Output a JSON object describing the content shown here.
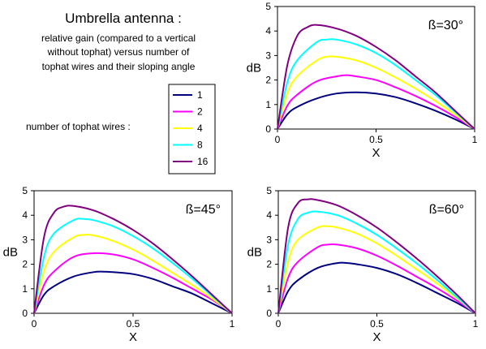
{
  "header": {
    "title": "Umbrella antenna :",
    "subtitle_lines": [
      "relative gain (compared to a vertical",
      "without tophat) versus number of",
      "tophat wires and their sloping angle"
    ],
    "legend_caption": "number of tophat wires :"
  },
  "legend": {
    "entries": [
      {
        "label": "1",
        "color": "#000080"
      },
      {
        "label": "2",
        "color": "#ff00ff"
      },
      {
        "label": "4",
        "color": "#ffff00"
      },
      {
        "label": "8",
        "color": "#00ffff"
      },
      {
        "label": "16",
        "color": "#800080"
      }
    ]
  },
  "chart_data": [
    {
      "type": "line",
      "annotation": "ß=30°",
      "xlabel": "X",
      "ylabel": "dB",
      "xlim": [
        0,
        1
      ],
      "ylim": [
        0,
        5
      ],
      "xticks": [
        "0",
        "0.5",
        "1"
      ],
      "yticks": [
        "0",
        "1",
        "2",
        "3",
        "4",
        "5"
      ],
      "grid": false,
      "series": [
        {
          "name": "1",
          "color": "#000080",
          "x": [
            0,
            0.05,
            0.1,
            0.2,
            0.3,
            0.4,
            0.5,
            0.6,
            0.7,
            0.8,
            0.9,
            1.0
          ],
          "values": [
            0,
            0.6,
            0.9,
            1.25,
            1.45,
            1.5,
            1.45,
            1.3,
            1.05,
            0.75,
            0.4,
            0
          ]
        },
        {
          "name": "2",
          "color": "#ff00ff",
          "x": [
            0,
            0.05,
            0.1,
            0.2,
            0.3,
            0.35,
            0.4,
            0.5,
            0.6,
            0.7,
            0.8,
            0.9,
            1.0
          ],
          "values": [
            0,
            0.95,
            1.4,
            1.95,
            2.15,
            2.2,
            2.15,
            2.0,
            1.7,
            1.35,
            0.95,
            0.5,
            0
          ]
        },
        {
          "name": "4",
          "color": "#ffff00",
          "x": [
            0,
            0.05,
            0.1,
            0.2,
            0.25,
            0.3,
            0.4,
            0.5,
            0.6,
            0.7,
            0.8,
            0.9,
            1.0
          ],
          "values": [
            0,
            1.45,
            2.15,
            2.8,
            2.95,
            2.95,
            2.8,
            2.5,
            2.1,
            1.65,
            1.15,
            0.6,
            0
          ]
        },
        {
          "name": "8",
          "color": "#00ffff",
          "x": [
            0,
            0.05,
            0.1,
            0.2,
            0.25,
            0.3,
            0.4,
            0.5,
            0.6,
            0.7,
            0.8,
            0.9,
            1.0
          ],
          "values": [
            0,
            1.9,
            2.8,
            3.55,
            3.65,
            3.65,
            3.45,
            3.1,
            2.6,
            2.0,
            1.4,
            0.7,
            0
          ]
        },
        {
          "name": "16",
          "color": "#800080",
          "x": [
            0,
            0.05,
            0.1,
            0.15,
            0.2,
            0.3,
            0.4,
            0.5,
            0.6,
            0.7,
            0.8,
            0.9,
            1.0
          ],
          "values": [
            0,
            2.6,
            3.8,
            4.15,
            4.25,
            4.1,
            3.8,
            3.35,
            2.8,
            2.15,
            1.5,
            0.75,
            0
          ]
        }
      ]
    },
    {
      "type": "line",
      "annotation": "ß=45°",
      "xlabel": "X",
      "ylabel": "dB",
      "xlim": [
        0,
        1
      ],
      "ylim": [
        0,
        5
      ],
      "xticks": [
        "0",
        "0.5",
        "1"
      ],
      "yticks": [
        "0",
        "1",
        "2",
        "3",
        "4",
        "5"
      ],
      "grid": false,
      "series": [
        {
          "name": "1",
          "color": "#000080",
          "x": [
            0,
            0.05,
            0.1,
            0.2,
            0.3,
            0.35,
            0.4,
            0.5,
            0.6,
            0.7,
            0.8,
            0.9,
            1.0
          ],
          "values": [
            0,
            0.75,
            1.1,
            1.5,
            1.68,
            1.7,
            1.68,
            1.6,
            1.4,
            1.1,
            0.8,
            0.4,
            0
          ]
        },
        {
          "name": "2",
          "color": "#ff00ff",
          "x": [
            0,
            0.05,
            0.1,
            0.2,
            0.3,
            0.4,
            0.5,
            0.6,
            0.7,
            0.8,
            0.9,
            1.0
          ],
          "values": [
            0,
            1.15,
            1.7,
            2.3,
            2.45,
            2.4,
            2.2,
            1.85,
            1.45,
            1.0,
            0.55,
            0
          ]
        },
        {
          "name": "4",
          "color": "#ffff00",
          "x": [
            0,
            0.05,
            0.1,
            0.2,
            0.25,
            0.3,
            0.4,
            0.5,
            0.6,
            0.7,
            0.8,
            0.9,
            1.0
          ],
          "values": [
            0,
            1.7,
            2.5,
            3.1,
            3.2,
            3.18,
            2.95,
            2.6,
            2.15,
            1.65,
            1.15,
            0.6,
            0
          ]
        },
        {
          "name": "8",
          "color": "#00ffff",
          "x": [
            0,
            0.05,
            0.1,
            0.2,
            0.25,
            0.3,
            0.4,
            0.5,
            0.6,
            0.7,
            0.8,
            0.9,
            1.0
          ],
          "values": [
            0,
            2.3,
            3.25,
            3.8,
            3.85,
            3.8,
            3.55,
            3.15,
            2.65,
            2.05,
            1.4,
            0.7,
            0
          ]
        },
        {
          "name": "16",
          "color": "#800080",
          "x": [
            0,
            0.05,
            0.1,
            0.15,
            0.2,
            0.3,
            0.4,
            0.5,
            0.6,
            0.7,
            0.8,
            0.9,
            1.0
          ],
          "values": [
            0,
            3.1,
            4.1,
            4.35,
            4.38,
            4.2,
            3.85,
            3.4,
            2.85,
            2.2,
            1.5,
            0.75,
            0
          ]
        }
      ]
    },
    {
      "type": "line",
      "annotation": "ß=60°",
      "xlabel": "X",
      "ylabel": "dB",
      "xlim": [
        0,
        1
      ],
      "ylim": [
        0,
        5
      ],
      "xticks": [
        "0",
        "0.5",
        "1"
      ],
      "yticks": [
        "0",
        "1",
        "2",
        "3",
        "4",
        "5"
      ],
      "grid": false,
      "series": [
        {
          "name": "1",
          "color": "#000080",
          "x": [
            0,
            0.05,
            0.1,
            0.2,
            0.3,
            0.35,
            0.4,
            0.5,
            0.6,
            0.7,
            0.8,
            0.9,
            1.0
          ],
          "values": [
            0,
            0.9,
            1.35,
            1.85,
            2.05,
            2.05,
            2.0,
            1.85,
            1.6,
            1.25,
            0.85,
            0.45,
            0
          ]
        },
        {
          "name": "2",
          "color": "#ff00ff",
          "x": [
            0,
            0.05,
            0.1,
            0.2,
            0.25,
            0.3,
            0.4,
            0.5,
            0.6,
            0.7,
            0.8,
            0.9,
            1.0
          ],
          "values": [
            0,
            1.45,
            2.1,
            2.7,
            2.8,
            2.8,
            2.65,
            2.35,
            1.95,
            1.5,
            1.05,
            0.55,
            0
          ]
        },
        {
          "name": "4",
          "color": "#ffff00",
          "x": [
            0,
            0.05,
            0.1,
            0.2,
            0.25,
            0.3,
            0.4,
            0.5,
            0.6,
            0.7,
            0.8,
            0.9,
            1.0
          ],
          "values": [
            0,
            2.1,
            3.0,
            3.5,
            3.55,
            3.5,
            3.25,
            2.85,
            2.35,
            1.8,
            1.25,
            0.65,
            0
          ]
        },
        {
          "name": "8",
          "color": "#00ffff",
          "x": [
            0,
            0.05,
            0.1,
            0.15,
            0.2,
            0.3,
            0.4,
            0.5,
            0.6,
            0.7,
            0.8,
            0.9,
            1.0
          ],
          "values": [
            0,
            2.8,
            3.85,
            4.1,
            4.15,
            4.0,
            3.65,
            3.2,
            2.65,
            2.05,
            1.4,
            0.7,
            0
          ]
        },
        {
          "name": "16",
          "color": "#800080",
          "x": [
            0,
            0.05,
            0.1,
            0.15,
            0.2,
            0.3,
            0.4,
            0.5,
            0.6,
            0.7,
            0.8,
            0.9,
            1.0
          ],
          "values": [
            0,
            3.5,
            4.5,
            4.65,
            4.62,
            4.4,
            4.0,
            3.5,
            2.9,
            2.25,
            1.55,
            0.8,
            0
          ]
        }
      ]
    }
  ]
}
